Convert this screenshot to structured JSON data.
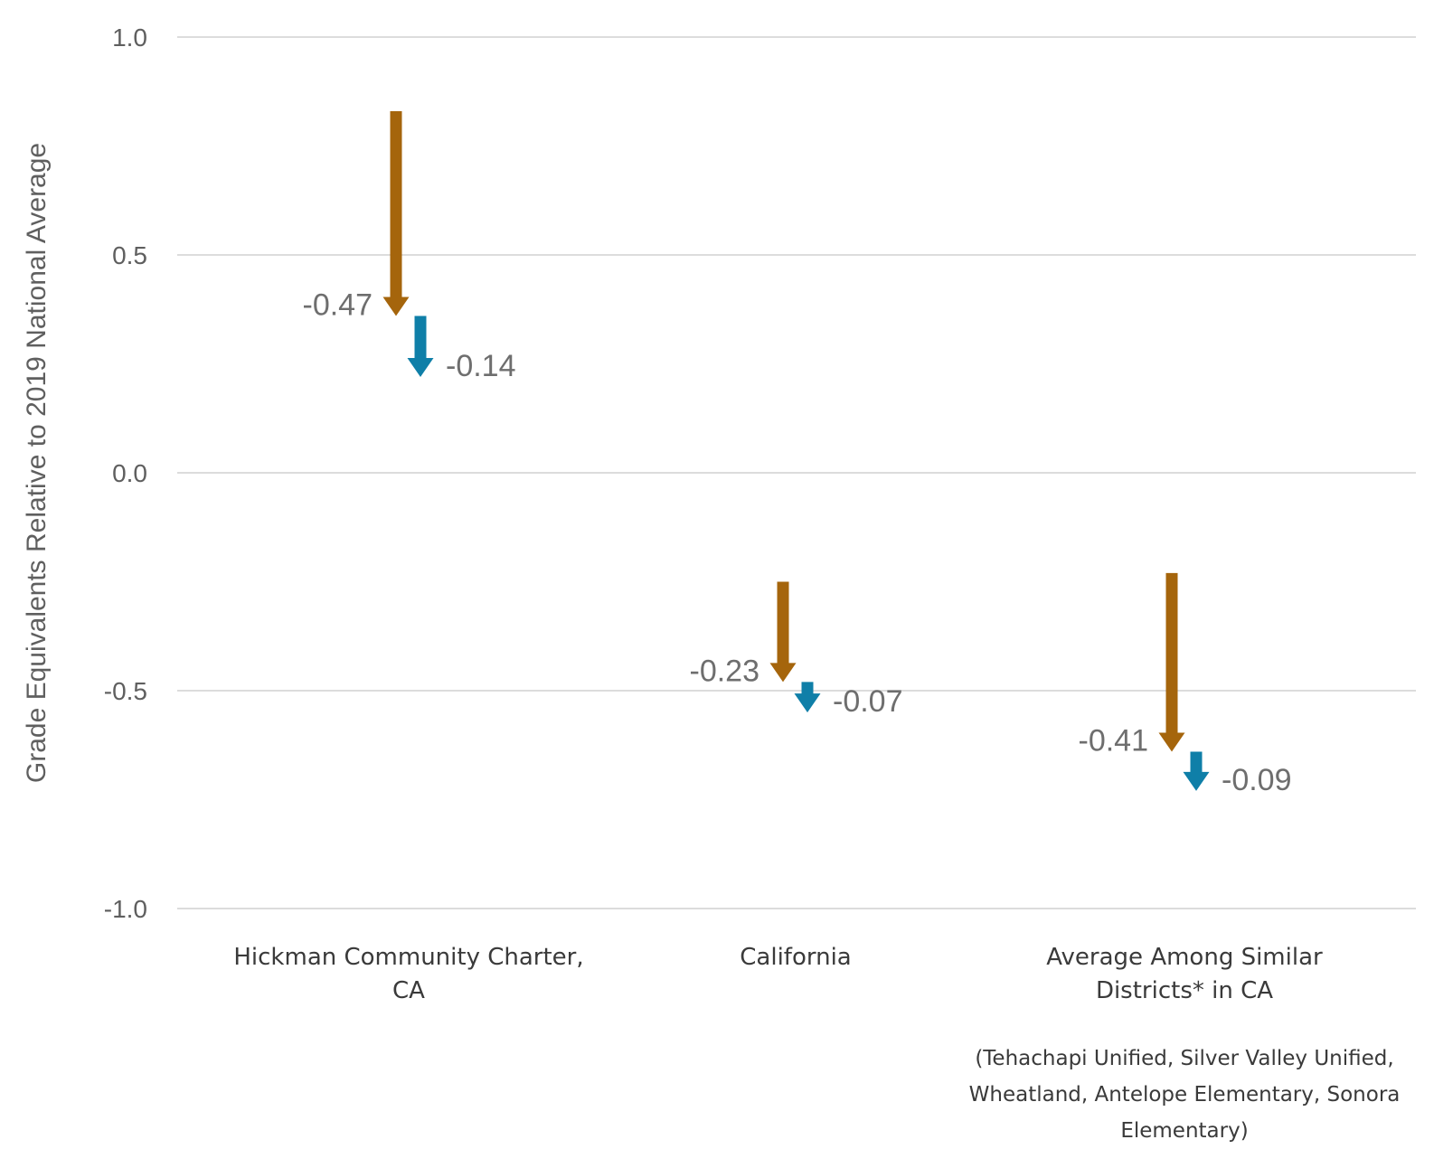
{
  "chart_data": {
    "type": "arrow",
    "ylabel": "Grade Equivalents Relative to 2019 National Average",
    "ylim": [
      -1.0,
      1.0
    ],
    "yticks": [
      1.0,
      0.5,
      0.0,
      -0.5,
      -1.0
    ],
    "ytick_labels": [
      "1.0",
      "0.5",
      "0.0",
      "-0.5",
      "-1.0"
    ],
    "grid": true,
    "categories": [
      [
        "Hickman Community Charter,",
        "CA"
      ],
      [
        "California"
      ],
      [
        "Average Among Similar",
        "Districts* in CA"
      ]
    ],
    "series": [
      {
        "color": "#a5650c",
        "points": [
          {
            "start": 0.83,
            "end": 0.36,
            "label": "-0.47"
          },
          {
            "start": -0.25,
            "end": -0.48,
            "label": "-0.23"
          },
          {
            "start": -0.23,
            "end": -0.64,
            "label": "-0.41"
          }
        ]
      },
      {
        "color": "#0f7fa8",
        "points": [
          {
            "start": 0.36,
            "end": 0.22,
            "label": "-0.14"
          },
          {
            "start": -0.48,
            "end": -0.55,
            "label": "-0.07"
          },
          {
            "start": -0.64,
            "end": -0.73,
            "label": "-0.09"
          }
        ]
      }
    ],
    "footnote": [
      "(Tehachapi Unified, Silver Valley Unified,",
      "Wheatland, Antelope Elementary, Sonora",
      "Elementary)"
    ]
  }
}
